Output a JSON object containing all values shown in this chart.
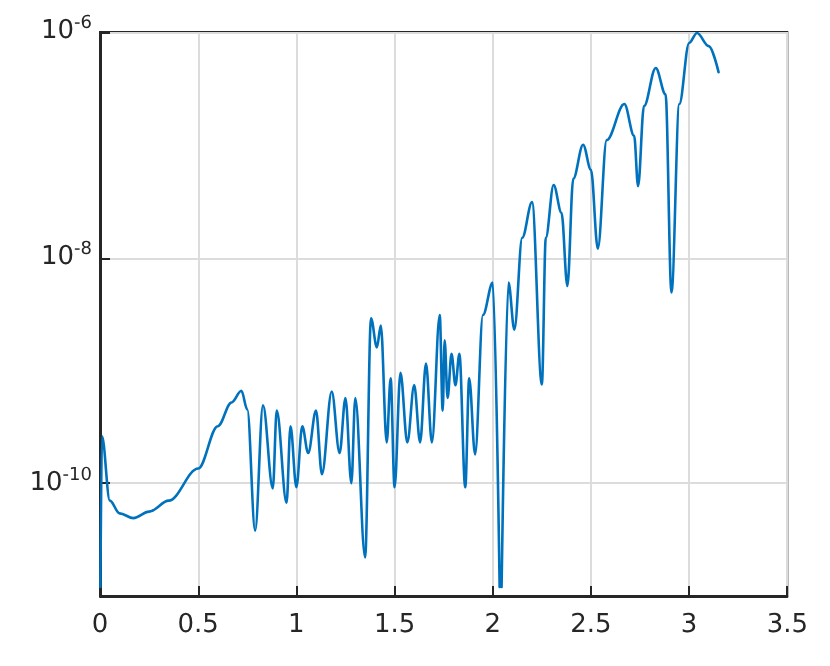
{
  "chart_data": {
    "type": "line",
    "log": "y",
    "grid": true,
    "marker": "none",
    "line_style": "solid",
    "xlim": [
      0,
      3.5
    ],
    "xticks": [
      0,
      0.5,
      1,
      1.5,
      2,
      2.5,
      3,
      3.5
    ],
    "ylim": [
      1e-11,
      1e-06
    ],
    "yticks": [
      {
        "value": 1e-10,
        "label": "10$^{-10}$"
      },
      {
        "value": 1e-08,
        "label": "10$^{-8}$"
      },
      {
        "value": 1e-06,
        "label": "10$^{-6}$"
      }
    ],
    "series": [
      {
        "color": "#0072bd",
        "x": [
          0.002,
          0.01,
          0.05,
          0.1,
          0.17,
          0.25,
          0.35,
          0.5,
          0.6,
          0.67,
          0.72,
          0.75,
          0.79,
          0.83,
          0.88,
          0.9,
          0.95,
          0.97,
          1.0,
          1.03,
          1.06,
          1.1,
          1.13,
          1.18,
          1.22,
          1.25,
          1.28,
          1.3,
          1.35,
          1.38,
          1.41,
          1.43,
          1.46,
          1.48,
          1.5,
          1.53,
          1.565,
          1.6,
          1.63,
          1.66,
          1.69,
          1.73,
          1.745,
          1.755,
          1.77,
          1.79,
          1.81,
          1.83,
          1.86,
          1.88,
          1.91,
          1.95,
          2.0,
          2.035,
          2.04,
          2.045,
          2.08,
          2.11,
          2.15,
          2.2,
          2.25,
          2.27,
          2.31,
          2.35,
          2.38,
          2.41,
          2.46,
          2.5,
          2.535,
          2.58,
          2.67,
          2.72,
          2.74,
          2.77,
          2.83,
          2.88,
          2.91,
          2.95,
          3.0,
          3.04,
          3.1,
          3.15
        ],
        "values": [
          1.2e-11,
          2.6e-10,
          7e-11,
          5.4e-11,
          4.9e-11,
          5.6e-11,
          7e-11,
          1.35e-10,
          3.2e-10,
          5.2e-10,
          6.6e-10,
          4.5e-10,
          3.8e-11,
          4.9e-10,
          9e-11,
          4.4e-10,
          6.7e-11,
          3.2e-10,
          9.2e-11,
          3.2e-10,
          1.85e-10,
          4.4e-10,
          1.2e-10,
          6.5e-10,
          1.85e-10,
          5.7e-10,
          1e-10,
          5.7e-10,
          2.2e-11,
          2.9e-09,
          1.6e-09,
          2.5e-09,
          2.3e-10,
          8.5e-10,
          9.2e-11,
          9.5e-10,
          2.3e-10,
          7.4e-10,
          2.3e-10,
          1.15e-09,
          2.3e-10,
          3.1e-09,
          4.4e-10,
          1.85e-09,
          5.7e-10,
          1.4e-09,
          7.4e-10,
          1.4e-09,
          9.2e-11,
          8.5e-10,
          1.8e-10,
          3.1e-09,
          6e-09,
          1.2e-11,
          null,
          1.2e-11,
          6e-09,
          2.3e-09,
          1.5e-08,
          3.1e-08,
          7.5e-10,
          1.5e-08,
          4.4e-08,
          2.5e-08,
          5.6e-09,
          5e-08,
          1e-07,
          6e-08,
          1.2e-08,
          1.1e-07,
          2.3e-07,
          1.2e-07,
          4.3e-08,
          2.2e-07,
          4.8e-07,
          2.8e-07,
          4.9e-09,
          2.3e-07,
          8e-07,
          9.8e-07,
          7.5e-07,
          4.4e-07
        ]
      }
    ]
  }
}
